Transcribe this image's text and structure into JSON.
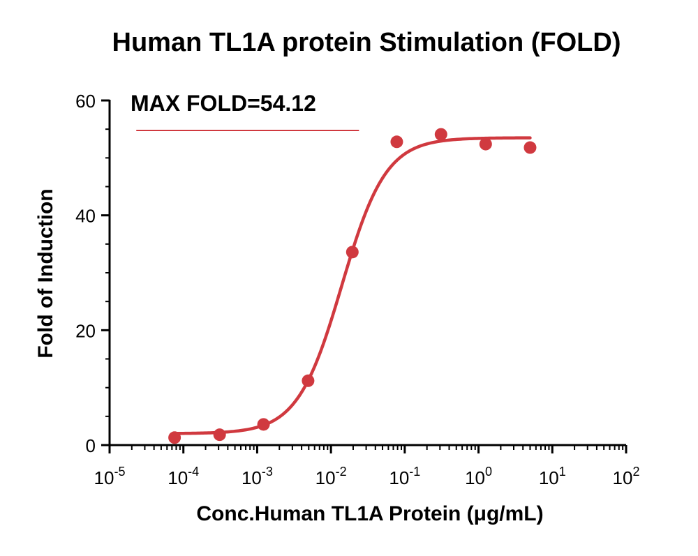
{
  "chart_data": {
    "type": "scatter",
    "title": "Human TL1A protein Stimulation (FOLD)",
    "xlabel": "Conc.Human TL1A Protein (μg/mL)",
    "ylabel": "Fold of Induction",
    "x_scale": "log",
    "xlim": [
      1e-05,
      100
    ],
    "ylim": [
      0,
      60
    ],
    "x_ticks": [
      {
        "base": "10",
        "exp": "-5"
      },
      {
        "base": "10",
        "exp": "-4"
      },
      {
        "base": "10",
        "exp": "-3"
      },
      {
        "base": "10",
        "exp": "-2"
      },
      {
        "base": "10",
        "exp": "-1"
      },
      {
        "base": "10",
        "exp": "0"
      },
      {
        "base": "10",
        "exp": "1"
      },
      {
        "base": "10",
        "exp": "2"
      }
    ],
    "y_ticks": [
      "0",
      "20",
      "40",
      "60"
    ],
    "series": [
      {
        "color": "#d0393f",
        "points": [
          {
            "x": 7.6e-05,
            "y": 1.3
          },
          {
            "x": 0.00031,
            "y": 1.8
          },
          {
            "x": 0.00122,
            "y": 3.6
          },
          {
            "x": 0.0049,
            "y": 11.2
          },
          {
            "x": 0.0195,
            "y": 33.6
          },
          {
            "x": 0.078,
            "y": 52.8
          },
          {
            "x": 0.31,
            "y": 54.1
          },
          {
            "x": 1.25,
            "y": 52.4
          },
          {
            "x": 5.0,
            "y": 51.8
          }
        ],
        "fit": {
          "bottom": 2.0,
          "top": 53.5,
          "ec50": 0.014,
          "hill": 1.45
        }
      }
    ],
    "annotation": {
      "text": "MAX FOLD=54.12",
      "reference_line_y": 54.12,
      "reference_line_x": [
        2.3e-05,
        0.024
      ]
    }
  }
}
